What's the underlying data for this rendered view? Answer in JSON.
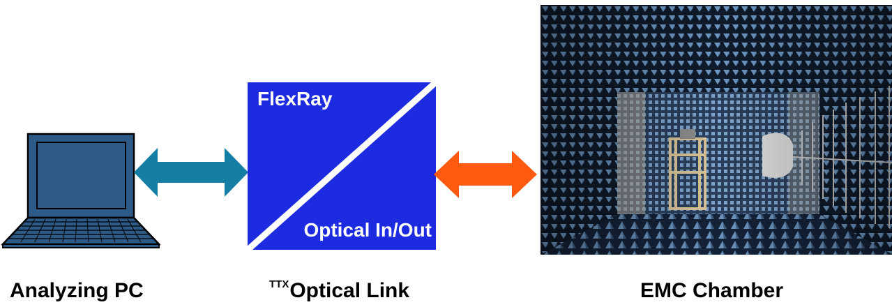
{
  "labels": {
    "pc": "Analyzing PC",
    "link_prefix": "TTX",
    "link": "Optical Link",
    "chamber": "EMC Chamber"
  },
  "device": {
    "top_label": "FlexRay",
    "bottom_label": "Optical In/Out"
  },
  "colors": {
    "device_blue": "#1c2be0",
    "laptop_blue": "#2d5a86",
    "link_arrow_teal": "#147ea4",
    "optical_arrow_orange": "#ff5a0f",
    "foam_blue": "#5c86b2"
  },
  "icons": {
    "pc": "laptop-icon",
    "pc_link": "double-arrow-icon",
    "optical_link": "double-arrow-icon",
    "chamber": "anechoic-chamber-photo"
  }
}
